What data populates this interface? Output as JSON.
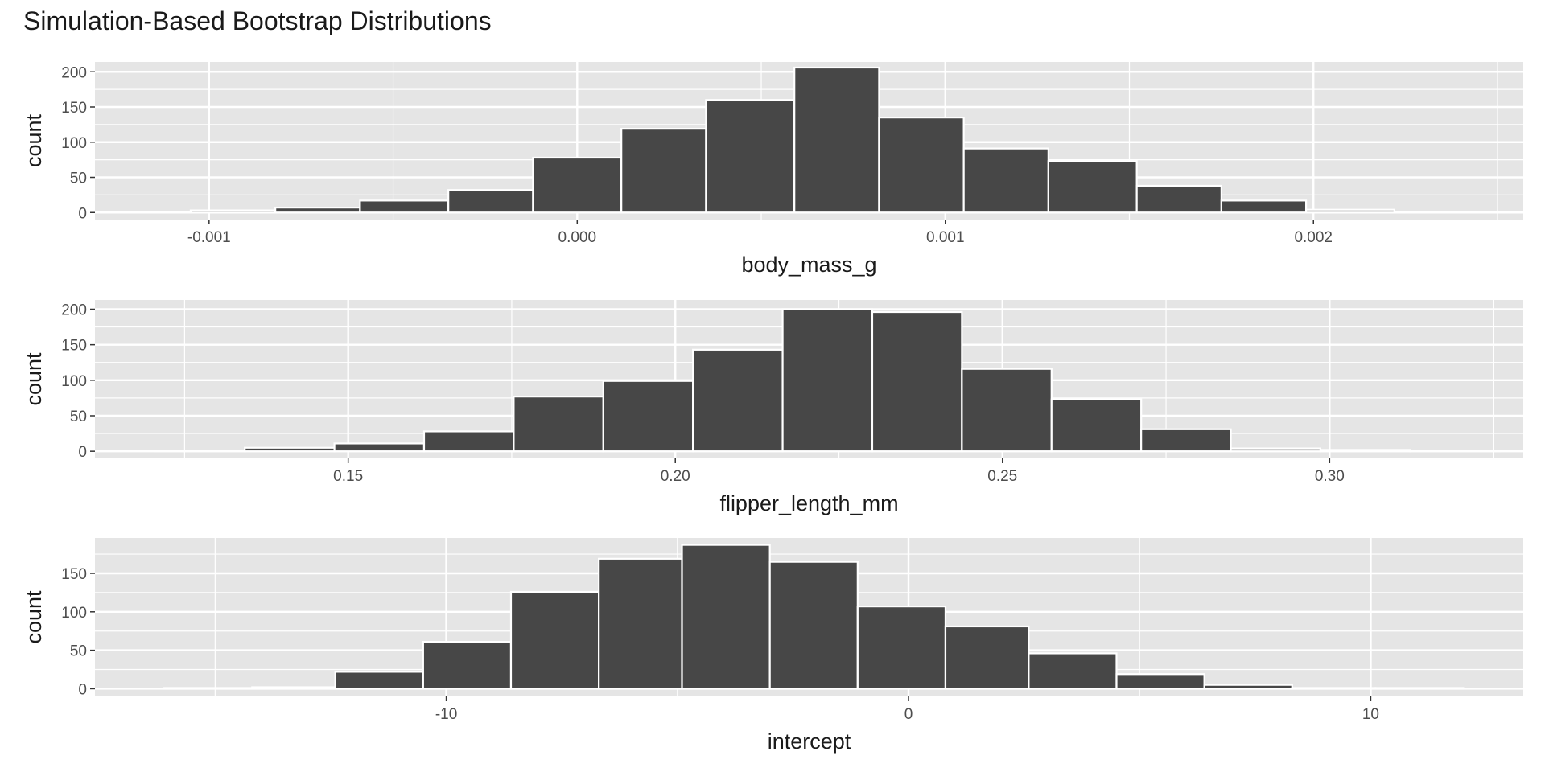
{
  "title": "Simulation-Based Bootstrap Distributions",
  "colors": {
    "bar_fill": "#474747",
    "bar_stroke": "#ffffff",
    "panel_bg": "#e5e5e5",
    "grid": "#ffffff"
  },
  "chart_data": [
    {
      "type": "bar",
      "xlabel": "body_mass_g",
      "ylabel": "count",
      "xlim": [
        -0.00131,
        0.00257
      ],
      "ylim": [
        -10,
        214
      ],
      "x_ticks": [
        -0.001,
        0.0,
        0.001,
        0.002
      ],
      "x_tick_labels": [
        "-0.001",
        "0.000",
        "0.001",
        "0.002"
      ],
      "y_ticks": [
        0,
        50,
        100,
        150,
        200
      ],
      "y_tick_labels": [
        "0",
        "50",
        "100",
        "150",
        "200"
      ],
      "bin_edges": [
        -0.00105,
        -0.00082,
        -0.00059,
        -0.00035,
        -0.00012,
        0.00012,
        0.00035,
        0.00059,
        0.00082,
        0.00105,
        0.00128,
        0.00152,
        0.00175,
        0.00198,
        0.00222,
        0.00245
      ],
      "values": [
        3,
        7,
        17,
        32,
        78,
        119,
        160,
        206,
        135,
        91,
        73,
        38,
        17,
        4,
        1
      ]
    },
    {
      "type": "bar",
      "xlabel": "flipper_length_mm",
      "ylabel": "count",
      "xlim": [
        0.1113,
        0.3296
      ],
      "ylim": [
        -10,
        213
      ],
      "x_ticks": [
        0.15,
        0.2,
        0.25,
        0.3
      ],
      "x_tick_labels": [
        "0.15",
        "0.20",
        "0.25",
        "0.30"
      ],
      "y_ticks": [
        0,
        50,
        100,
        150,
        200
      ],
      "y_tick_labels": [
        "0",
        "50",
        "100",
        "150",
        "200"
      ],
      "bin_edges": [
        0.1205,
        0.1342,
        0.1479,
        0.1616,
        0.1753,
        0.189,
        0.2027,
        0.2164,
        0.2301,
        0.2438,
        0.2575,
        0.2712,
        0.2849,
        0.2986,
        0.3123,
        0.326
      ],
      "values": [
        1,
        5,
        11,
        28,
        77,
        99,
        143,
        200,
        196,
        116,
        73,
        31,
        4,
        2,
        1
      ]
    },
    {
      "type": "bar",
      "xlabel": "intercept",
      "ylabel": "count",
      "xlim": [
        -17.6,
        13.3
      ],
      "ylim": [
        -10,
        196
      ],
      "x_ticks": [
        -10,
        0,
        10
      ],
      "x_tick_labels": [
        "-10",
        "0",
        "10"
      ],
      "y_ticks": [
        0,
        50,
        100,
        150
      ],
      "y_tick_labels": [
        "0",
        "50",
        "100",
        "150"
      ],
      "bin_edges": [
        -16.1,
        -14.2,
        -12.4,
        -10.5,
        -8.6,
        -6.7,
        -4.9,
        -3.0,
        -1.1,
        0.8,
        2.6,
        4.5,
        6.4,
        8.3,
        10.1,
        12.0
      ],
      "values": [
        1,
        2,
        22,
        61,
        126,
        169,
        187,
        165,
        107,
        81,
        46,
        19,
        5,
        1,
        1
      ]
    }
  ]
}
